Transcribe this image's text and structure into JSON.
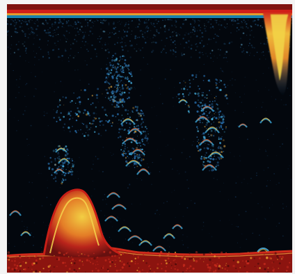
{
  "image": {
    "kind": "fish-finder-sonar-display",
    "colors": {
      "background": "#03070d",
      "surface_band": "#7f120f",
      "surface_highlight": "#d11f19",
      "seabed": "#8c140f",
      "strong_echo": "#e6c33b",
      "medium_echo": "#d96c1d",
      "weak_echo": "#3aa9d8",
      "faint_echo": "#295f95",
      "page_background": "#f4f4f4"
    }
  }
}
